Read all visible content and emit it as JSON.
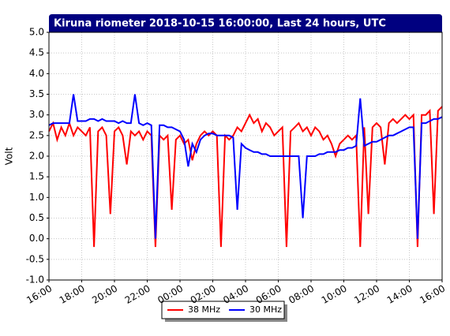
{
  "chart_data": {
    "type": "line",
    "title": "Kiruna riometer 2018-10-15 16:00:00, Last 24 hours, UTC",
    "y_label": "Volt",
    "x": [
      0,
      0.25,
      0.5,
      0.75,
      1,
      1.25,
      1.5,
      1.75,
      2,
      2.25,
      2.5,
      2.75,
      3,
      3.25,
      3.5,
      3.75,
      4,
      4.25,
      4.5,
      4.75,
      5,
      5.25,
      5.5,
      5.75,
      6,
      6.25,
      6.5,
      6.75,
      7,
      7.25,
      7.5,
      7.75,
      8,
      8.25,
      8.5,
      8.75,
      9,
      9.25,
      9.5,
      9.75,
      10,
      10.25,
      10.5,
      10.75,
      11,
      11.25,
      11.5,
      11.75,
      12,
      12.25,
      12.5,
      12.75,
      13,
      13.25,
      13.5,
      13.75,
      14,
      14.25,
      14.5,
      14.75,
      15,
      15.25,
      15.5,
      15.75,
      16,
      16.25,
      16.5,
      16.75,
      17,
      17.25,
      17.5,
      17.75,
      18,
      18.25,
      18.5,
      18.75,
      19,
      19.25,
      19.5,
      19.75,
      20,
      20.25,
      20.5,
      20.75,
      21,
      21.25,
      21.5,
      21.75,
      22,
      22.25,
      22.5,
      22.75,
      23,
      23.25,
      23.5,
      23.75,
      24
    ],
    "series": [
      {
        "name": "38 MHz",
        "color": "#ff0000",
        "values": [
          2.6,
          2.8,
          2.4,
          2.7,
          2.5,
          2.8,
          2.5,
          2.7,
          2.6,
          2.5,
          2.7,
          -0.2,
          2.6,
          2.7,
          2.5,
          0.6,
          2.6,
          2.7,
          2.5,
          1.8,
          2.6,
          2.5,
          2.6,
          2.4,
          2.6,
          2.5,
          -0.2,
          2.5,
          2.4,
          2.5,
          0.7,
          2.4,
          2.5,
          2.3,
          2.4,
          1.9,
          2.3,
          2.5,
          2.6,
          2.5,
          2.6,
          2.5,
          -0.2,
          2.5,
          2.4,
          2.5,
          2.7,
          2.6,
          2.8,
          3.0,
          2.8,
          2.9,
          2.6,
          2.8,
          2.7,
          2.5,
          2.6,
          2.7,
          -0.2,
          2.6,
          2.7,
          2.8,
          2.6,
          2.7,
          2.5,
          2.7,
          2.6,
          2.4,
          2.5,
          2.3,
          2.0,
          2.3,
          2.4,
          2.5,
          2.4,
          2.5,
          -0.2,
          2.7,
          0.6,
          2.7,
          2.8,
          2.7,
          1.8,
          2.8,
          2.9,
          2.8,
          2.9,
          3.0,
          2.9,
          3.0,
          -0.2,
          3.0,
          3.0,
          3.1,
          0.6,
          3.1,
          3.2
        ]
      },
      {
        "name": "30 MHz",
        "color": "#0000ff",
        "values": [
          2.75,
          2.8,
          2.8,
          2.8,
          2.8,
          2.8,
          3.5,
          2.85,
          2.85,
          2.85,
          2.9,
          2.9,
          2.85,
          2.9,
          2.85,
          2.85,
          2.85,
          2.8,
          2.85,
          2.8,
          2.8,
          3.5,
          2.8,
          2.75,
          2.8,
          2.75,
          0.0,
          2.75,
          2.75,
          2.7,
          2.7,
          2.65,
          2.6,
          2.4,
          1.75,
          2.3,
          2.1,
          2.4,
          2.5,
          2.55,
          2.55,
          2.5,
          2.5,
          2.5,
          2.5,
          2.45,
          0.7,
          2.3,
          2.2,
          2.15,
          2.1,
          2.1,
          2.05,
          2.05,
          2.0,
          2.0,
          2.0,
          2.0,
          2.0,
          2.0,
          2.0,
          2.0,
          0.5,
          2.0,
          2.0,
          2.0,
          2.05,
          2.05,
          2.1,
          2.1,
          2.1,
          2.15,
          2.15,
          2.2,
          2.2,
          2.25,
          3.4,
          2.25,
          2.3,
          2.35,
          2.35,
          2.4,
          2.45,
          2.5,
          2.5,
          2.55,
          2.6,
          2.65,
          2.7,
          2.7,
          0.0,
          2.8,
          2.8,
          2.85,
          2.9,
          2.9,
          2.95
        ]
      }
    ],
    "xlim": [
      0,
      24
    ],
    "xticks": [
      {
        "value": 0,
        "label": "16:00"
      },
      {
        "value": 2,
        "label": "18:00"
      },
      {
        "value": 4,
        "label": "20:00"
      },
      {
        "value": 6,
        "label": "22:00"
      },
      {
        "value": 8,
        "label": "00:00"
      },
      {
        "value": 10,
        "label": "02:00"
      },
      {
        "value": 12,
        "label": "04:00"
      },
      {
        "value": 14,
        "label": "06:00"
      },
      {
        "value": 16,
        "label": "08:00"
      },
      {
        "value": 18,
        "label": "10:00"
      },
      {
        "value": 20,
        "label": "12:00"
      },
      {
        "value": 22,
        "label": "14:00"
      },
      {
        "value": 24,
        "label": "16:00"
      }
    ],
    "ylim": [
      -1,
      5
    ],
    "yticks": [
      {
        "value": -1,
        "label": "-1.0"
      },
      -0.5,
      {
        "value": 0,
        "label": "0.0"
      },
      0.5,
      {
        "value": 1,
        "label": "1.0"
      },
      1.5,
      {
        "value": 2,
        "label": "2.0"
      },
      2.5,
      {
        "value": 3,
        "label": "3.0"
      },
      3.5,
      {
        "value": 4,
        "label": "4.0"
      },
      4.5,
      {
        "value": 5,
        "label": "5.0"
      }
    ],
    "grid": true
  }
}
